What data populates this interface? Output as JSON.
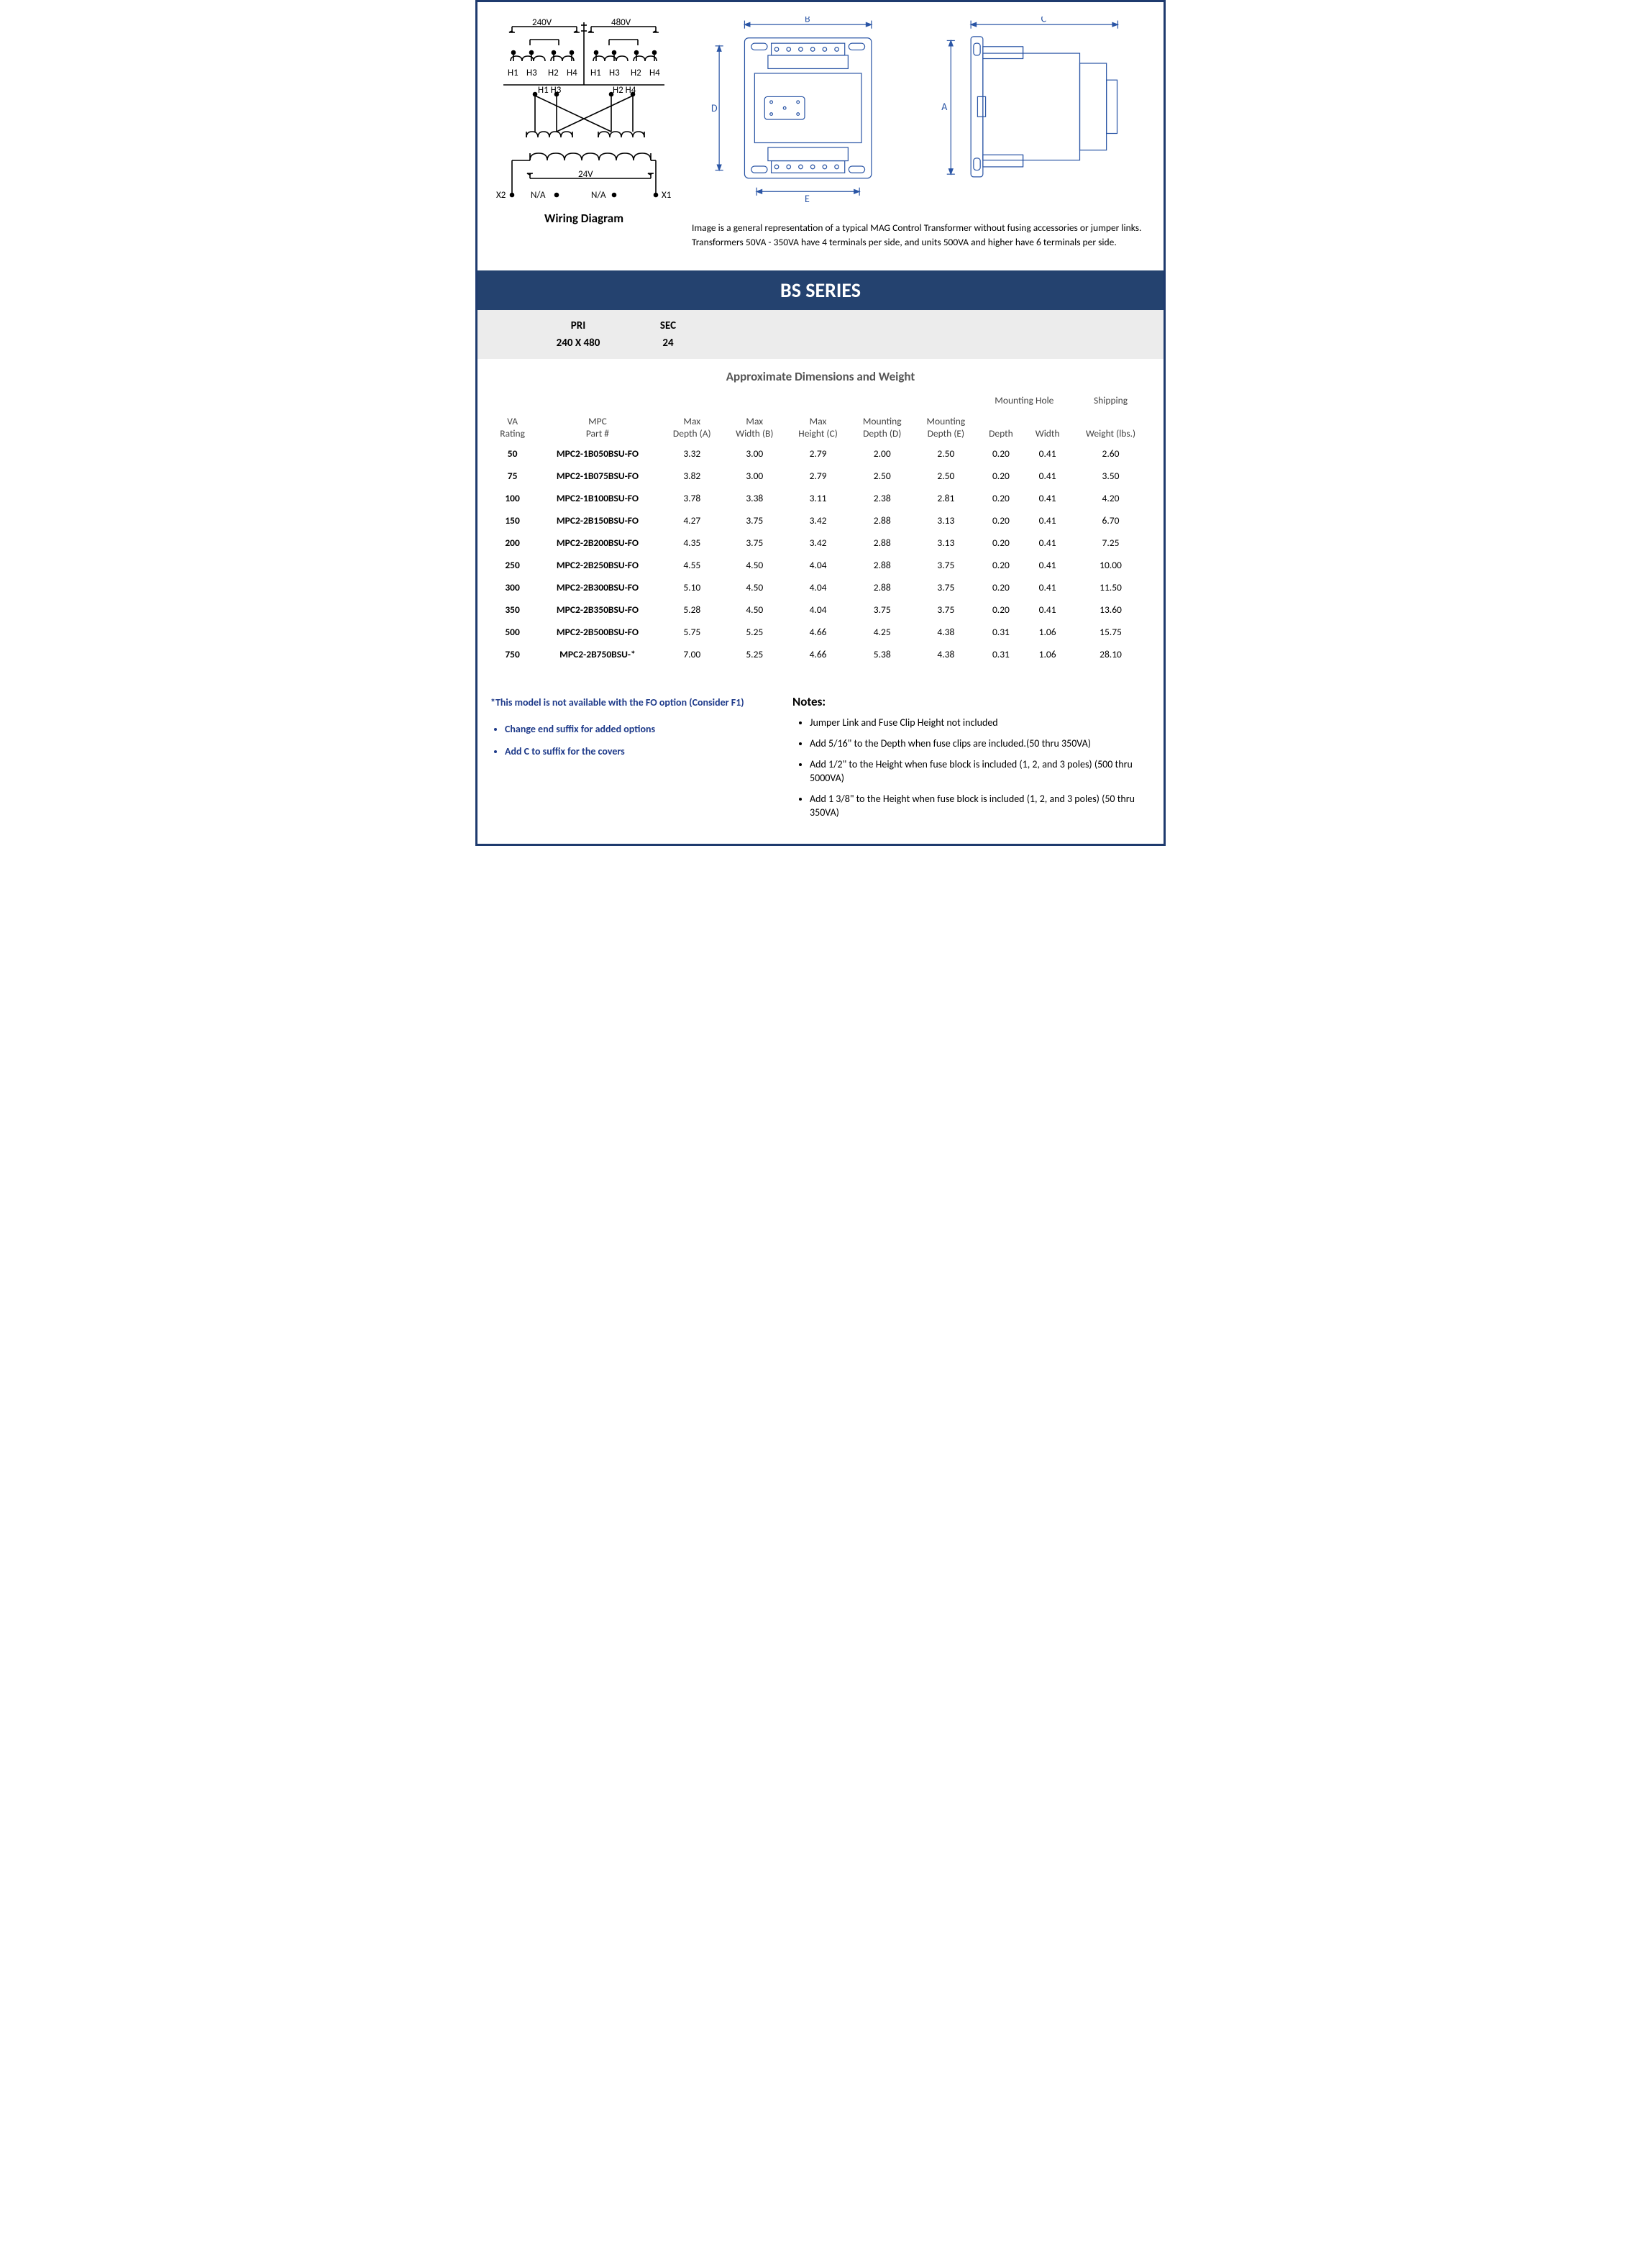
{
  "colors": {
    "border": "#1e3a6e",
    "banner": "#24426f",
    "subheader_bg": "#ececec",
    "link_blue": "#1e3a8a",
    "tech_stroke": "#2a55a5"
  },
  "wiring": {
    "caption": "Wiring Diagram",
    "v_left": "240V",
    "v_right": "480V",
    "h_labels": [
      "H1",
      "H3",
      "H2",
      "H4"
    ],
    "cross_labels_left": "H1  H3",
    "cross_labels_right": "H2  H4",
    "sec_v": "24V",
    "x2": "X2",
    "x1": "X1",
    "na": "N/A"
  },
  "tech_note": "Image is a general representation of a typical MAG Control Transformer  without fusing accessories or jumper links.  Transformers 50VA - 350VA  have 4 terminals per side, and units 500VA and higher have 6 terminals per side.",
  "dim_labels": {
    "A": "A",
    "B": "B",
    "C": "C",
    "D": "D",
    "E": "E"
  },
  "series_title": "BS SERIES",
  "subheader": {
    "pri_label": "PRI",
    "pri_value": "240 X 480",
    "sec_label": "SEC",
    "sec_value": "24"
  },
  "dims_title": "Approximate Dimensions and Weight",
  "table": {
    "group_mounting": "Mounting Hole",
    "group_shipping": "Shipping",
    "columns": [
      {
        "l1": "VA",
        "l2": "Rating"
      },
      {
        "l1": "MPC",
        "l2": "Part #"
      },
      {
        "l1": "Max",
        "l2": "Depth (A)"
      },
      {
        "l1": "Max",
        "l2": "Width (B)"
      },
      {
        "l1": "Max",
        "l2": "Height (C)"
      },
      {
        "l1": "Mounting",
        "l2": "Depth (D)"
      },
      {
        "l1": "Mounting",
        "l2": "Depth (E)"
      },
      {
        "l1": "",
        "l2": "Depth"
      },
      {
        "l1": "",
        "l2": "Width"
      },
      {
        "l1": "",
        "l2": "Weight (lbs.)"
      }
    ],
    "rows": [
      [
        "50",
        "MPC2-1B050BSU-FO",
        "3.32",
        "3.00",
        "2.79",
        "2.00",
        "2.50",
        "0.20",
        "0.41",
        "2.60"
      ],
      [
        "75",
        "MPC2-1B075BSU-FO",
        "3.82",
        "3.00",
        "2.79",
        "2.50",
        "2.50",
        "0.20",
        "0.41",
        "3.50"
      ],
      [
        "100",
        "MPC2-1B100BSU-FO",
        "3.78",
        "3.38",
        "3.11",
        "2.38",
        "2.81",
        "0.20",
        "0.41",
        "4.20"
      ],
      [
        "150",
        "MPC2-2B150BSU-FO",
        "4.27",
        "3.75",
        "3.42",
        "2.88",
        "3.13",
        "0.20",
        "0.41",
        "6.70"
      ],
      [
        "200",
        "MPC2-2B200BSU-FO",
        "4.35",
        "3.75",
        "3.42",
        "2.88",
        "3.13",
        "0.20",
        "0.41",
        "7.25"
      ],
      [
        "250",
        "MPC2-2B250BSU-FO",
        "4.55",
        "4.50",
        "4.04",
        "2.88",
        "3.75",
        "0.20",
        "0.41",
        "10.00"
      ],
      [
        "300",
        "MPC2-2B300BSU-FO",
        "5.10",
        "4.50",
        "4.04",
        "2.88",
        "3.75",
        "0.20",
        "0.41",
        "11.50"
      ],
      [
        "350",
        "MPC2-2B350BSU-FO",
        "5.28",
        "4.50",
        "4.04",
        "3.75",
        "3.75",
        "0.20",
        "0.41",
        "13.60"
      ],
      [
        "500",
        "MPC2-2B500BSU-FO",
        "5.75",
        "5.25",
        "4.66",
        "4.25",
        "4.38",
        "0.31",
        "1.06",
        "15.75"
      ],
      [
        "750",
        "MPC2-2B750BSU-*",
        "7.00",
        "5.25",
        "4.66",
        "5.38",
        "4.38",
        "0.31",
        "1.06",
        "28.10"
      ]
    ]
  },
  "left_notes": {
    "asterisk": "*This model is not available with the FO option (Consider F1)",
    "bullets": [
      "Change end suffix for added options",
      "Add C to suffix for the covers"
    ]
  },
  "right_notes": {
    "title": "Notes:",
    "bullets": [
      "Jumper Link and Fuse Clip Height not included",
      "Add 5/16\" to the Depth when fuse clips are included.(50 thru 350VA)",
      "Add 1/2\" to the Height when fuse block is included (1, 2, and 3 poles) (500 thru 5000VA)",
      "Add 1 3/8\" to the Height when fuse block is included (1, 2, and 3 poles) (50 thru 350VA)"
    ]
  }
}
